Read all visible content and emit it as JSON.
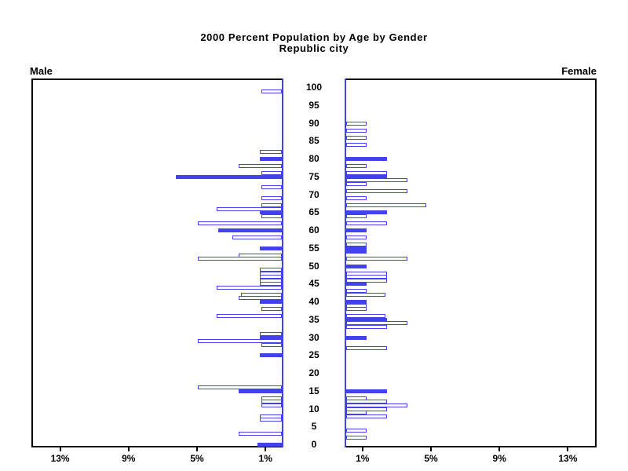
{
  "chart_data": {
    "type": "bar",
    "variant": "population-pyramid",
    "title": "2000 Percent Population by Age by Gender",
    "subtitle": "Republic city",
    "left_series_label": "Male",
    "right_series_label": "Female",
    "x_ticks_percent": [
      1,
      5,
      9,
      13
    ],
    "x_tick_labels": [
      "1%",
      "5%",
      "9%",
      "13%"
    ],
    "xlim_percent": [
      0,
      14.7
    ],
    "age_axis_ticks": [
      0,
      5,
      10,
      15,
      20,
      25,
      30,
      35,
      40,
      45,
      50,
      55,
      60,
      65,
      70,
      75,
      80,
      85,
      90,
      95,
      100
    ],
    "age_tick_labels": [
      "0",
      "5",
      "10",
      "15",
      "20",
      "25",
      "30",
      "35",
      "40",
      "45",
      "50",
      "55",
      "60",
      "65",
      "70",
      "75",
      "80",
      "85",
      "90",
      "95",
      "100"
    ],
    "bar_fill_color": "#4242ec",
    "bar_outline_color": "#4242ec",
    "axis_color": "#000000",
    "center_axis_color": "#4242ec",
    "legend_position": "none",
    "grid": false,
    "male": [
      {
        "age": 99,
        "pct": 1.2,
        "filled": false
      },
      {
        "age": 82,
        "pct": 1.3,
        "filled": false
      },
      {
        "age": 80,
        "pct": 1.3,
        "filled": true
      },
      {
        "age": 78,
        "pct": 2.5,
        "filled": false
      },
      {
        "age": 76,
        "pct": 1.2,
        "filled": false
      },
      {
        "age": 75,
        "pct": 6.2,
        "filled": true
      },
      {
        "age": 72,
        "pct": 1.2,
        "filled": false
      },
      {
        "age": 69,
        "pct": 1.2,
        "filled": false
      },
      {
        "age": 67,
        "pct": 1.2,
        "filled": false
      },
      {
        "age": 66,
        "pct": 3.8,
        "filled": false
      },
      {
        "age": 65,
        "pct": 1.3,
        "filled": true
      },
      {
        "age": 64,
        "pct": 1.2,
        "filled": false
      },
      {
        "age": 62,
        "pct": 4.9,
        "filled": false
      },
      {
        "age": 60,
        "pct": 3.7,
        "filled": true
      },
      {
        "age": 58,
        "pct": 2.9,
        "filled": false
      },
      {
        "age": 55,
        "pct": 1.3,
        "filled": true
      },
      {
        "age": 53,
        "pct": 2.5,
        "filled": false
      },
      {
        "age": 52,
        "pct": 4.9,
        "filled": false
      },
      {
        "age": 49,
        "pct": 1.3,
        "filled": false
      },
      {
        "age": 48,
        "pct": 1.3,
        "filled": false
      },
      {
        "age": 47,
        "pct": 1.3,
        "filled": false
      },
      {
        "age": 46,
        "pct": 1.3,
        "filled": false
      },
      {
        "age": 45,
        "pct": 1.3,
        "filled": false
      },
      {
        "age": 44,
        "pct": 3.8,
        "filled": false
      },
      {
        "age": 42,
        "pct": 2.4,
        "filled": false
      },
      {
        "age": 41,
        "pct": 2.5,
        "filled": false
      },
      {
        "age": 40,
        "pct": 1.3,
        "filled": true
      },
      {
        "age": 38,
        "pct": 1.2,
        "filled": false
      },
      {
        "age": 36,
        "pct": 3.8,
        "filled": false
      },
      {
        "age": 31,
        "pct": 1.3,
        "filled": false
      },
      {
        "age": 30,
        "pct": 1.3,
        "filled": true
      },
      {
        "age": 29,
        "pct": 4.9,
        "filled": false
      },
      {
        "age": 28,
        "pct": 1.2,
        "filled": false
      },
      {
        "age": 25,
        "pct": 1.3,
        "filled": true
      },
      {
        "age": 16,
        "pct": 4.9,
        "filled": false
      },
      {
        "age": 15,
        "pct": 2.5,
        "filled": true
      },
      {
        "age": 13,
        "pct": 1.2,
        "filled": false
      },
      {
        "age": 12,
        "pct": 1.2,
        "filled": false
      },
      {
        "age": 11,
        "pct": 1.2,
        "filled": false
      },
      {
        "age": 8,
        "pct": 1.3,
        "filled": false
      },
      {
        "age": 7,
        "pct": 1.3,
        "filled": false
      },
      {
        "age": 3,
        "pct": 2.5,
        "filled": false
      },
      {
        "age": 0,
        "pct": 1.4,
        "filled": true
      }
    ],
    "female": [
      {
        "age": 90,
        "pct": 1.2,
        "filled": false
      },
      {
        "age": 88,
        "pct": 1.2,
        "filled": false
      },
      {
        "age": 86,
        "pct": 1.2,
        "filled": false
      },
      {
        "age": 84,
        "pct": 1.2,
        "filled": false
      },
      {
        "age": 80,
        "pct": 2.4,
        "filled": true
      },
      {
        "age": 78,
        "pct": 1.2,
        "filled": false
      },
      {
        "age": 76,
        "pct": 2.4,
        "filled": false
      },
      {
        "age": 75,
        "pct": 2.4,
        "filled": true
      },
      {
        "age": 74,
        "pct": 3.6,
        "filled": false
      },
      {
        "age": 73,
        "pct": 1.2,
        "filled": false
      },
      {
        "age": 71,
        "pct": 3.6,
        "filled": false
      },
      {
        "age": 69,
        "pct": 1.2,
        "filled": false
      },
      {
        "age": 67,
        "pct": 4.7,
        "filled": false
      },
      {
        "age": 65,
        "pct": 2.4,
        "filled": true
      },
      {
        "age": 64,
        "pct": 1.2,
        "filled": false
      },
      {
        "age": 62,
        "pct": 2.4,
        "filled": false
      },
      {
        "age": 60,
        "pct": 1.2,
        "filled": true
      },
      {
        "age": 58,
        "pct": 1.2,
        "filled": false
      },
      {
        "age": 56,
        "pct": 1.2,
        "filled": false
      },
      {
        "age": 55,
        "pct": 1.2,
        "filled": true
      },
      {
        "age": 54,
        "pct": 1.2,
        "filled": true
      },
      {
        "age": 52,
        "pct": 3.6,
        "filled": false
      },
      {
        "age": 50,
        "pct": 1.2,
        "filled": true
      },
      {
        "age": 48,
        "pct": 2.4,
        "filled": false
      },
      {
        "age": 47,
        "pct": 2.4,
        "filled": false
      },
      {
        "age": 46,
        "pct": 2.4,
        "filled": false
      },
      {
        "age": 45,
        "pct": 1.2,
        "filled": true
      },
      {
        "age": 43,
        "pct": 1.2,
        "filled": false
      },
      {
        "age": 42,
        "pct": 2.3,
        "filled": false
      },
      {
        "age": 40,
        "pct": 1.2,
        "filled": true
      },
      {
        "age": 39,
        "pct": 1.2,
        "filled": false
      },
      {
        "age": 38,
        "pct": 1.2,
        "filled": false
      },
      {
        "age": 36,
        "pct": 2.3,
        "filled": false
      },
      {
        "age": 35,
        "pct": 2.4,
        "filled": true
      },
      {
        "age": 34,
        "pct": 3.6,
        "filled": false
      },
      {
        "age": 33,
        "pct": 2.4,
        "filled": false
      },
      {
        "age": 30,
        "pct": 1.2,
        "filled": true
      },
      {
        "age": 27,
        "pct": 2.4,
        "filled": false
      },
      {
        "age": 15,
        "pct": 2.4,
        "filled": true
      },
      {
        "age": 13,
        "pct": 1.2,
        "filled": false
      },
      {
        "age": 12,
        "pct": 2.4,
        "filled": false
      },
      {
        "age": 11,
        "pct": 3.6,
        "filled": false
      },
      {
        "age": 10,
        "pct": 2.4,
        "filled": false
      },
      {
        "age": 9,
        "pct": 1.2,
        "filled": false
      },
      {
        "age": 8,
        "pct": 2.4,
        "filled": false
      },
      {
        "age": 4,
        "pct": 1.2,
        "filled": false
      },
      {
        "age": 2,
        "pct": 1.2,
        "filled": false
      }
    ]
  }
}
